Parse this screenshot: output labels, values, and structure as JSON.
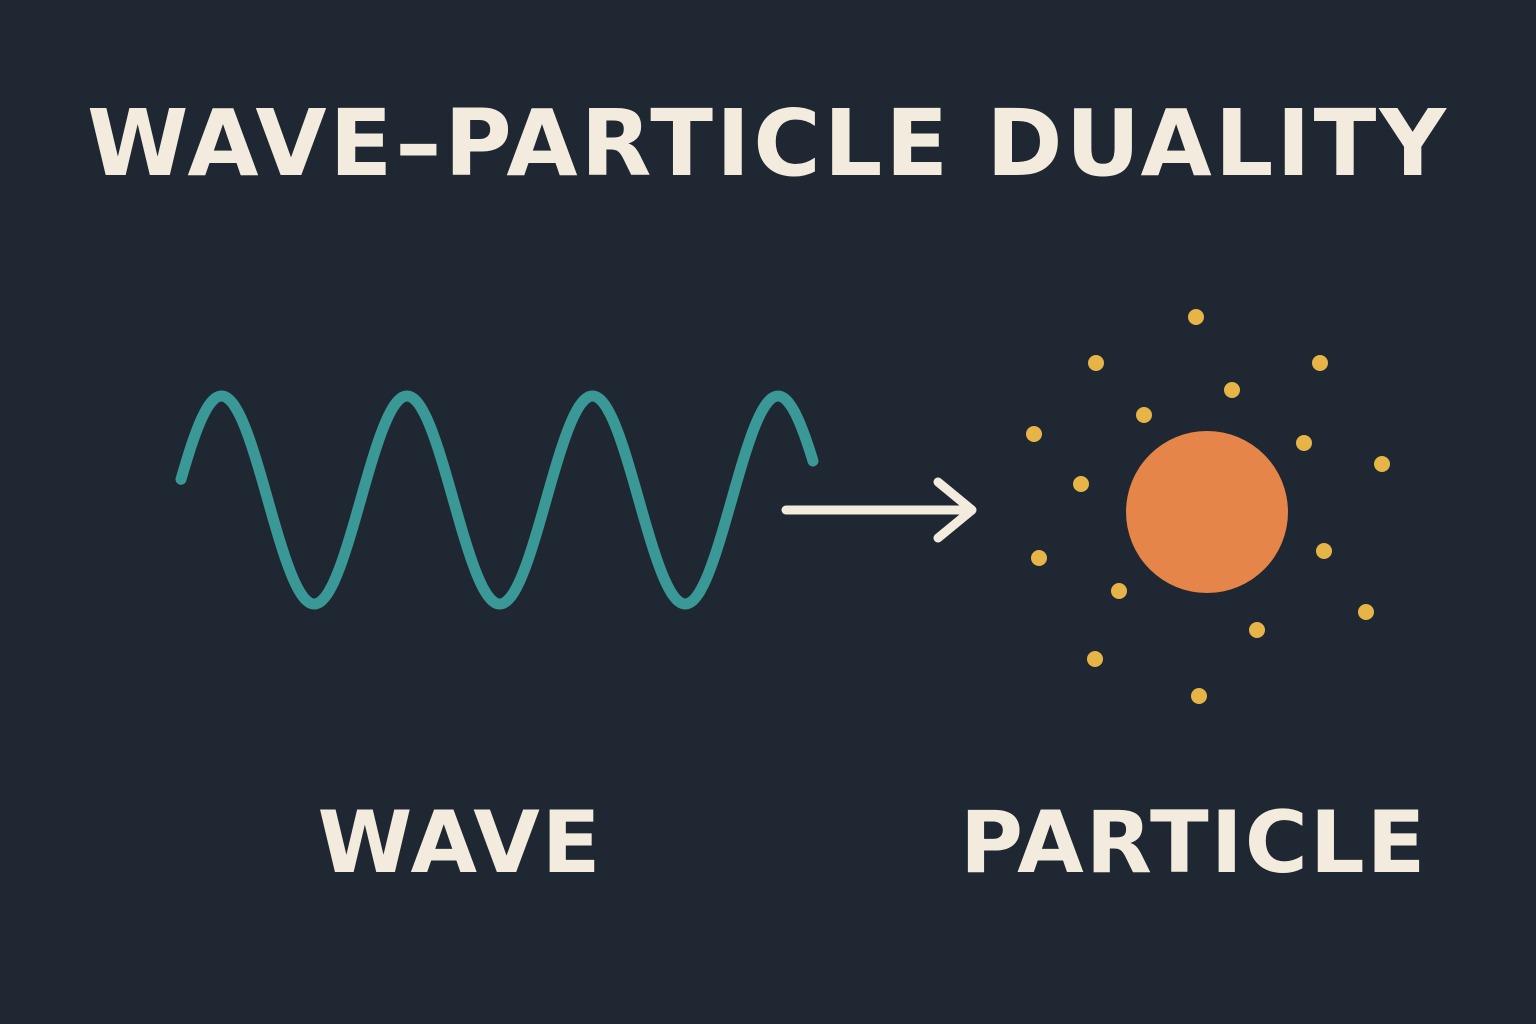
{
  "title": "WAVE–PARTICLE DUALITY",
  "labels": {
    "wave": "WAVE",
    "particle": "PARTICLE"
  },
  "colors": {
    "background": "#1f2832",
    "text": "#f3ebdd",
    "wave": "#3a9896",
    "arrow": "#f3ebdd",
    "particle": "#e5854a",
    "dots": "#e6b447"
  },
  "icons": {
    "wave": "sine-wave-icon",
    "arrow": "right-arrow-icon",
    "particle": "particle-sphere-icon"
  }
}
